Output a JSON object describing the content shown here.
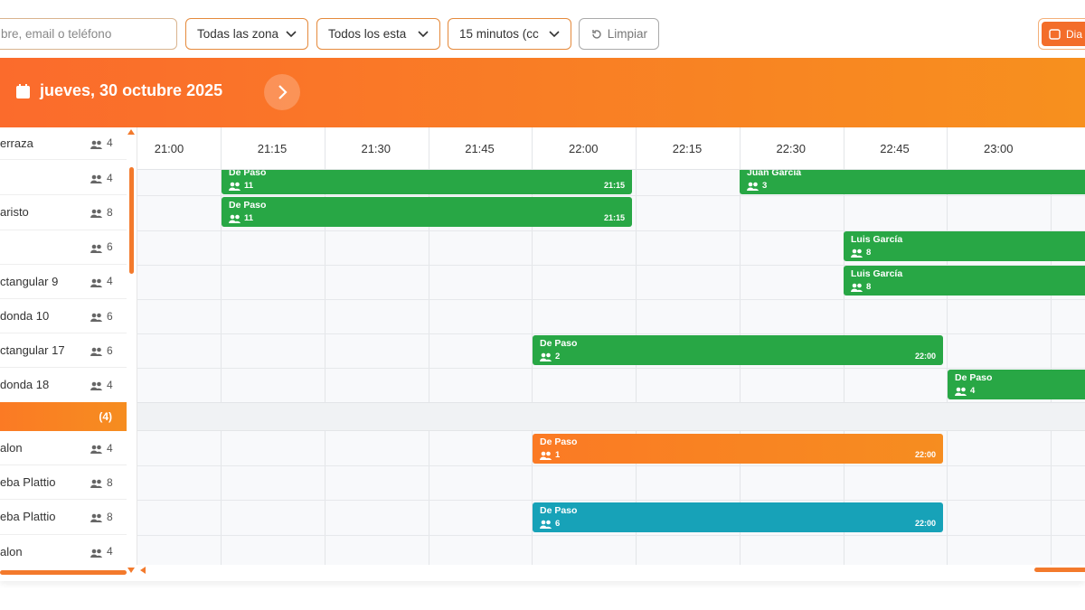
{
  "filters": {
    "search_placeholder": "bre, email o teléfono",
    "zone": "Todas las zona",
    "status": "Todos los esta",
    "interval": "15 minutos (cc",
    "clear": "Limpiar",
    "view": "Dia"
  },
  "header": {
    "date": "jueves, 30 octubre 2025"
  },
  "times": [
    "21:00",
    "21:15",
    "21:30",
    "21:45",
    "22:00",
    "22:15",
    "22:30",
    "22:45",
    "23:00"
  ],
  "tables": [
    {
      "name": "erraza",
      "capacity": 4
    },
    {
      "name": "",
      "capacity": 4
    },
    {
      "name": "aristo",
      "capacity": 8
    },
    {
      "name": "",
      "capacity": 6
    },
    {
      "name": "ctangular 9",
      "capacity": 4
    },
    {
      "name": "donda 10",
      "capacity": 6
    },
    {
      "name": "ctangular 17",
      "capacity": 6
    },
    {
      "name": "donda 18",
      "capacity": 4
    },
    {
      "name": "alon",
      "capacity": 4
    },
    {
      "name": "eba Plattio",
      "capacity": 8
    },
    {
      "name": "eba Plattio",
      "capacity": 8
    },
    {
      "name": "alon",
      "capacity": 4
    }
  ],
  "group": {
    "count": "(4)"
  },
  "bookings": [
    {
      "name": "De Paso",
      "guests": 11,
      "time": "21:15"
    },
    {
      "name": "Juan García",
      "guests": 3
    },
    {
      "name": "De Paso",
      "guests": 11,
      "time": "21:15"
    },
    {
      "name": "Luis García",
      "guests": 8
    },
    {
      "name": "Luis García",
      "guests": 8
    },
    {
      "name": "De Paso",
      "guests": 2,
      "time": "22:00"
    },
    {
      "name": "De Paso",
      "guests": 4
    },
    {
      "name": "De Paso",
      "guests": 1,
      "time": "22:00"
    },
    {
      "name": "De Paso",
      "guests": 6,
      "time": "22:00"
    }
  ]
}
